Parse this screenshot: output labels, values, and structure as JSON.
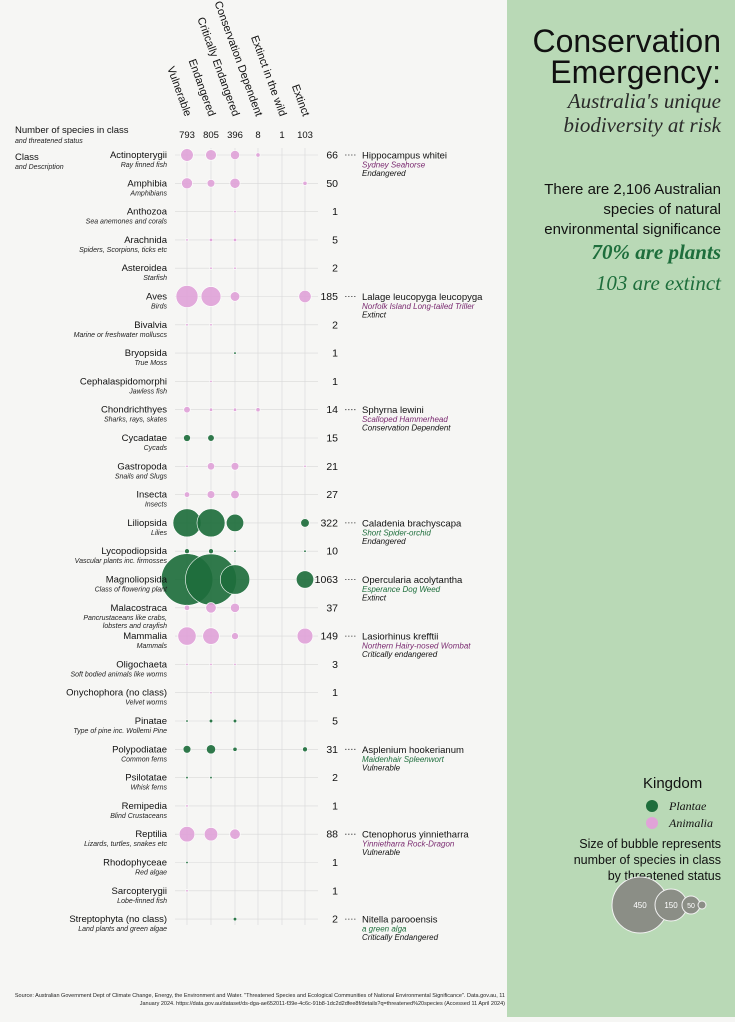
{
  "header": {
    "title_line1": "Conservation",
    "title_line2": "Emergency:",
    "subtitle_line1": "Australia's unique",
    "subtitle_line2": "biodiversity at risk",
    "stat_line1": "There are 2,106 Australian",
    "stat_line2": "species of natural",
    "stat_line3": "environmental significance",
    "highlight1": "70% are plants",
    "highlight2": "103 are extinct"
  },
  "legend": {
    "title": "Kingdom",
    "plantae_label": "Plantae",
    "animalia_label": "Animalia",
    "size_line1": "Size of bubble represents",
    "size_line2": "number of species in class",
    "size_line3": "by threatened status",
    "size_values": [
      "450",
      "150",
      "50"
    ],
    "colors": {
      "Plantae": "#1e6e3c",
      "Animalia": "#e0a3d8"
    }
  },
  "source": "Source: Australian Government Dept of Climate Change, Energy, the Environment and Water. \"Threatened Species and Ecological Communities of National Environmental Significance\". Data.gov.au, 11 January 2024. https://data.gov.au/dataset/ds-dga-ae652011-f39e-4c6c-91b8-1dc2d2dfee8f/details?q=threatened%20species (Accessed 11 April 2024)",
  "chart_data": {
    "type": "scatter",
    "header_label": "Number of species in class",
    "header_sublabel": "and threatened status",
    "class_label": "Class",
    "class_sublabel": "and Description",
    "categories": [
      "Vulnerable",
      "Endangered",
      "Critically Endangered",
      "Conservation Dependent",
      "Extinct in the wild",
      "Extinct"
    ],
    "category_totals": [
      "793",
      "805",
      "396",
      "8",
      "1",
      "103"
    ],
    "rows": [
      {
        "name": "Actinopterygii",
        "desc": "Ray finned fish",
        "kingdom": "Animalia",
        "total": "66",
        "values": [
          26,
          19,
          14,
          3,
          0,
          0
        ],
        "example": {
          "species": "Hippocampus whitei",
          "common": "Sydney Seahorse",
          "status": "Endangered"
        }
      },
      {
        "name": "Amphibia",
        "desc": "Amphibians",
        "kingdom": "Animalia",
        "total": "50",
        "values": [
          20,
          10,
          17,
          0,
          0,
          3
        ]
      },
      {
        "name": "Anthozoa",
        "desc": "Sea anemones and corals",
        "kingdom": "Animalia",
        "total": "1",
        "values": [
          0,
          0,
          1,
          0,
          0,
          0
        ]
      },
      {
        "name": "Arachnida",
        "desc": "Spiders, Scorpions, ticks etc",
        "kingdom": "Animalia",
        "total": "5",
        "values": [
          1,
          2,
          2,
          0,
          0,
          0
        ]
      },
      {
        "name": "Asteroidea",
        "desc": "Starfish",
        "kingdom": "Animalia",
        "total": "2",
        "values": [
          0,
          1,
          1,
          0,
          0,
          0
        ]
      },
      {
        "name": "Aves",
        "desc": "Birds",
        "kingdom": "Animalia",
        "total": "185",
        "values": [
          80,
          65,
          15,
          0,
          0,
          25
        ],
        "example": {
          "species": "Lalage leucopyga leucopyga",
          "common": "Norfolk Island Long-tailed Triller",
          "status": "Extinct"
        }
      },
      {
        "name": "Bivalvia",
        "desc": "Marine or freshwater molluscs",
        "kingdom": "Animalia",
        "total": "2",
        "values": [
          1,
          1,
          0,
          0,
          0,
          0
        ]
      },
      {
        "name": "Bryopsida",
        "desc": "True Moss",
        "kingdom": "Plantae",
        "total": "1",
        "values": [
          0,
          0,
          1,
          0,
          0,
          0
        ]
      },
      {
        "name": "Cephalaspidomorphi",
        "desc": "Jawless fish",
        "kingdom": "Animalia",
        "total": "1",
        "values": [
          0,
          1,
          0,
          0,
          0,
          0
        ]
      },
      {
        "name": "Chondrichthyes",
        "desc": "Sharks, rays, skates",
        "kingdom": "Animalia",
        "total": "14",
        "values": [
          7,
          2,
          2,
          3,
          0,
          0
        ],
        "example": {
          "species": "Sphyrna lewini",
          "common": "Scalloped Hammerhead",
          "status": "Conservation Dependent"
        }
      },
      {
        "name": "Cycadatae",
        "desc": "Cycads",
        "kingdom": "Plantae",
        "total": "15",
        "values": [
          8,
          7,
          0,
          0,
          0,
          0
        ]
      },
      {
        "name": "Gastropoda",
        "desc": "Snails and Slugs",
        "kingdom": "Animalia",
        "total": "21",
        "values": [
          1,
          9,
          10,
          0,
          0,
          1
        ]
      },
      {
        "name": "Insecta",
        "desc": "Insects",
        "kingdom": "Animalia",
        "total": "27",
        "values": [
          5,
          10,
          12,
          0,
          0,
          0
        ]
      },
      {
        "name": "Liliopsida",
        "desc": "Lilies",
        "kingdom": "Plantae",
        "total": "322",
        "values": [
          130,
          130,
          50,
          0,
          0,
          12
        ],
        "example": {
          "species": "Caladenia brachyscapa",
          "common": "Short Spider-orchid",
          "status": "Endangered"
        }
      },
      {
        "name": "Lycopodiopsida",
        "desc": "Vascular plants inc. firmosses",
        "kingdom": "Plantae",
        "total": "10",
        "values": [
          4,
          4,
          1,
          0,
          0,
          1
        ]
      },
      {
        "name": "Magnoliopsida",
        "desc": "Class of flowering plant",
        "kingdom": "Plantae",
        "total": "1063",
        "values": [
          440,
          430,
          143,
          0,
          0,
          50
        ],
        "example": {
          "species": "Opercularia acolytantha",
          "common": "Esperance Dog Weed",
          "status": "Extinct"
        }
      },
      {
        "name": "Malacostraca",
        "desc": "Pancrustaceans like crabs, lobsters and crayfish",
        "kingdom": "Animalia",
        "total": "37",
        "values": [
          5,
          18,
          14,
          0,
          0,
          0
        ]
      },
      {
        "name": "Mammalia",
        "desc": "Mammals",
        "kingdom": "Animalia",
        "total": "149",
        "values": [
          55,
          45,
          8,
          0,
          0,
          41
        ],
        "example": {
          "species": "Lasiorhinus krefftii",
          "common": "Northern Hairy-nosed Wombat",
          "status": "Critically endangered"
        }
      },
      {
        "name": "Oligochaeta",
        "desc": "Soft bodied animals like worms",
        "kingdom": "Animalia",
        "total": "3",
        "values": [
          1,
          1,
          1,
          0,
          0,
          0
        ]
      },
      {
        "name": "Onychophora (no class)",
        "desc": "Velvet worms",
        "kingdom": "Animalia",
        "total": "1",
        "values": [
          0,
          1,
          0,
          0,
          0,
          0
        ]
      },
      {
        "name": "Pinatae",
        "desc": "Type of pine inc. Wollemi Pine",
        "kingdom": "Plantae",
        "total": "5",
        "values": [
          1,
          2,
          2,
          0,
          0,
          0
        ]
      },
      {
        "name": "Polypodiatae",
        "desc": "Common ferns",
        "kingdom": "Plantae",
        "total": "31",
        "values": [
          10,
          14,
          3,
          0,
          0,
          4
        ],
        "example": {
          "species": "Asplenium hookerianum",
          "common": "Maidenhair Spleenwort",
          "status": "Vulnerable"
        }
      },
      {
        "name": "Psilotatae",
        "desc": "Whisk ferns",
        "kingdom": "Plantae",
        "total": "2",
        "values": [
          1,
          1,
          0,
          0,
          0,
          0
        ]
      },
      {
        "name": "Remipedia",
        "desc": "Blind Crustaceans",
        "kingdom": "Animalia",
        "total": "1",
        "values": [
          1,
          0,
          0,
          0,
          0,
          0
        ]
      },
      {
        "name": "Reptilia",
        "desc": "Lizards, turtles, snakes etc",
        "kingdom": "Animalia",
        "total": "88",
        "values": [
          40,
          30,
          18,
          0,
          0,
          0
        ],
        "example": {
          "species": "Ctenophorus yinnietharra",
          "common": "Yinnietharra Rock-Dragon",
          "status": "Vulnerable"
        }
      },
      {
        "name": "Rhodophyceae",
        "desc": "Red algae",
        "kingdom": "Plantae",
        "total": "1",
        "values": [
          1,
          0,
          0,
          0,
          0,
          0
        ]
      },
      {
        "name": "Sarcopterygii",
        "desc": "Lobe-finned fish",
        "kingdom": "Animalia",
        "total": "1",
        "values": [
          1,
          0,
          0,
          0,
          0,
          0
        ]
      },
      {
        "name": "Streptophyta (no class)",
        "desc": "Land plants and green algae",
        "kingdom": "Plantae",
        "total": "2",
        "values": [
          0,
          0,
          2,
          0,
          0,
          0
        ],
        "example": {
          "species": "Nitella parooensis",
          "common": "a green alga",
          "status": "Critically Endangered"
        }
      }
    ]
  }
}
